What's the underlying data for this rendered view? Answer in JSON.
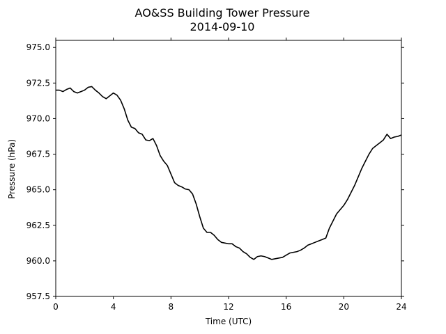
{
  "chart_data": {
    "type": "line",
    "title_line1": "AO&SS Building Tower Pressure",
    "title_line2": "2014-09-10",
    "xlabel": "Time (UTC)",
    "ylabel": "Pressure (hPa)",
    "xlim": [
      0,
      24
    ],
    "ylim": [
      957.5,
      975.5
    ],
    "x_ticks": [
      0,
      4,
      8,
      12,
      16,
      20,
      24
    ],
    "x_tick_labels": [
      "0",
      "4",
      "8",
      "12",
      "16",
      "20",
      "24"
    ],
    "y_ticks": [
      957.5,
      960.0,
      962.5,
      965.0,
      967.5,
      970.0,
      972.5,
      975.0
    ],
    "y_tick_labels": [
      "957.5",
      "960.0",
      "962.5",
      "965.0",
      "967.5",
      "970.0",
      "972.5",
      "975.0"
    ],
    "grid": false,
    "line_color": "#000000",
    "series": [
      {
        "x": [
          0.0,
          0.25,
          0.5,
          0.75,
          1.0,
          1.25,
          1.5,
          1.75,
          2.0,
          2.25,
          2.5,
          2.75,
          3.0,
          3.25,
          3.5,
          3.75,
          4.0,
          4.25,
          4.5,
          4.75,
          5.0,
          5.25,
          5.5,
          5.75,
          6.0,
          6.25,
          6.5,
          6.75,
          7.0,
          7.25,
          7.5,
          7.75,
          8.0,
          8.25,
          8.5,
          8.75,
          9.0,
          9.25,
          9.5,
          9.75,
          10.0,
          10.25,
          10.5,
          10.75,
          11.0,
          11.25,
          11.5,
          11.75,
          12.0,
          12.25,
          12.5,
          12.75,
          13.0,
          13.25,
          13.5,
          13.75,
          14.0,
          14.25,
          14.5,
          14.75,
          15.0,
          15.25,
          15.5,
          15.75,
          16.0,
          16.25,
          16.5,
          16.75,
          17.0,
          17.25,
          17.5,
          17.75,
          18.0,
          18.25,
          18.5,
          18.75,
          19.0,
          19.25,
          19.5,
          19.75,
          20.0,
          20.25,
          20.5,
          20.75,
          21.0,
          21.25,
          21.5,
          21.75,
          22.0,
          22.25,
          22.5,
          22.75,
          23.0,
          23.25,
          23.5,
          23.75,
          24.0
        ],
        "values": [
          972.0,
          972.0,
          971.9,
          972.05,
          972.15,
          971.9,
          971.8,
          971.9,
          972.0,
          972.2,
          972.25,
          972.0,
          971.8,
          971.55,
          971.4,
          971.6,
          971.8,
          971.65,
          971.3,
          970.7,
          969.9,
          969.4,
          969.3,
          969.0,
          968.9,
          968.5,
          968.45,
          968.6,
          968.1,
          967.4,
          967.0,
          966.7,
          966.1,
          965.5,
          965.3,
          965.2,
          965.05,
          965.0,
          964.7,
          964.0,
          963.1,
          962.3,
          962.0,
          962.0,
          961.8,
          961.5,
          961.3,
          961.25,
          961.2,
          961.2,
          961.0,
          960.9,
          960.65,
          960.5,
          960.25,
          960.1,
          960.3,
          960.35,
          960.3,
          960.2,
          960.1,
          960.15,
          960.2,
          960.25,
          960.4,
          960.55,
          960.6,
          960.65,
          960.75,
          960.9,
          961.1,
          961.2,
          961.3,
          961.4,
          961.5,
          961.6,
          962.3,
          962.8,
          963.3,
          963.6,
          963.9,
          964.3,
          964.8,
          965.3,
          965.9,
          966.5,
          967.0,
          967.5,
          967.9,
          968.1,
          968.3,
          968.5,
          968.9,
          968.6,
          968.7,
          968.75,
          968.85
        ]
      }
    ]
  }
}
